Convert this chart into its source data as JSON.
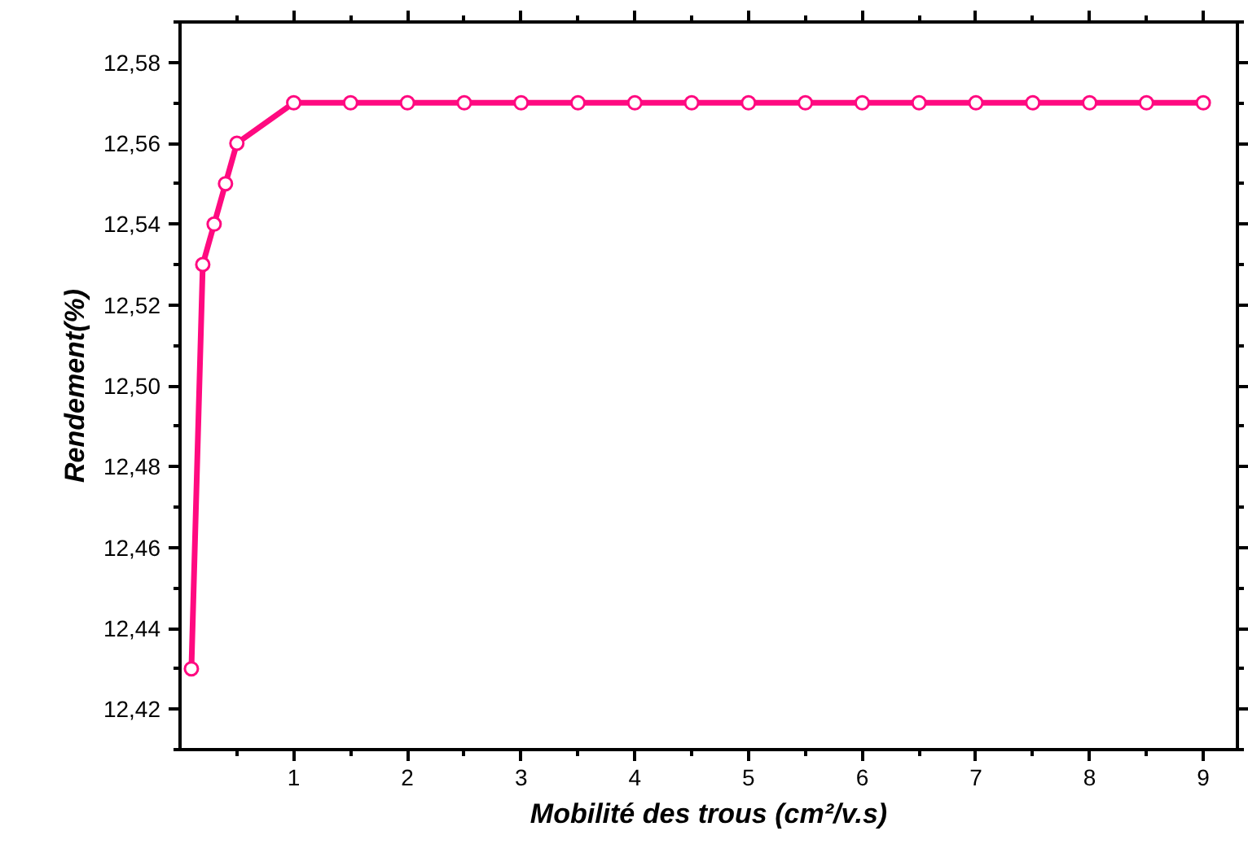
{
  "chart_data": {
    "type": "line",
    "xlabel": "Mobilité des trous (cm²/v.s)",
    "ylabel": "Rendement(%)",
    "x": [
      0.1,
      0.2,
      0.3,
      0.4,
      0.5,
      1,
      1.5,
      2,
      2.5,
      3,
      3.5,
      4,
      4.5,
      5,
      5.5,
      6,
      6.5,
      7,
      7.5,
      8,
      8.5,
      9
    ],
    "series": [
      {
        "color": "#ff0a80",
        "values": [
          12.43,
          12.53,
          12.54,
          12.55,
          12.56,
          12.57,
          12.57,
          12.57,
          12.57,
          12.57,
          12.57,
          12.57,
          12.57,
          12.57,
          12.57,
          12.57,
          12.57,
          12.57,
          12.57,
          12.57,
          12.57,
          12.57
        ]
      }
    ],
    "xlim": [
      0,
      9.3
    ],
    "ylim": [
      12.41,
      12.59
    ],
    "xticks": [
      1,
      2,
      3,
      4,
      5,
      6,
      7,
      8,
      9
    ],
    "yticks": [
      {
        "value": 12.42,
        "label": "12,42"
      },
      {
        "value": 12.44,
        "label": "12,44"
      },
      {
        "value": 12.46,
        "label": "12,46"
      },
      {
        "value": 12.48,
        "label": "12,48"
      },
      {
        "value": 12.5,
        "label": "12,50"
      },
      {
        "value": 12.52,
        "label": "12,52"
      },
      {
        "value": 12.54,
        "label": "12,54"
      },
      {
        "value": 12.56,
        "label": "12,56"
      },
      {
        "value": 12.58,
        "label": "12,58"
      }
    ],
    "marker": "circle",
    "line_style": "solid",
    "grid": false
  }
}
